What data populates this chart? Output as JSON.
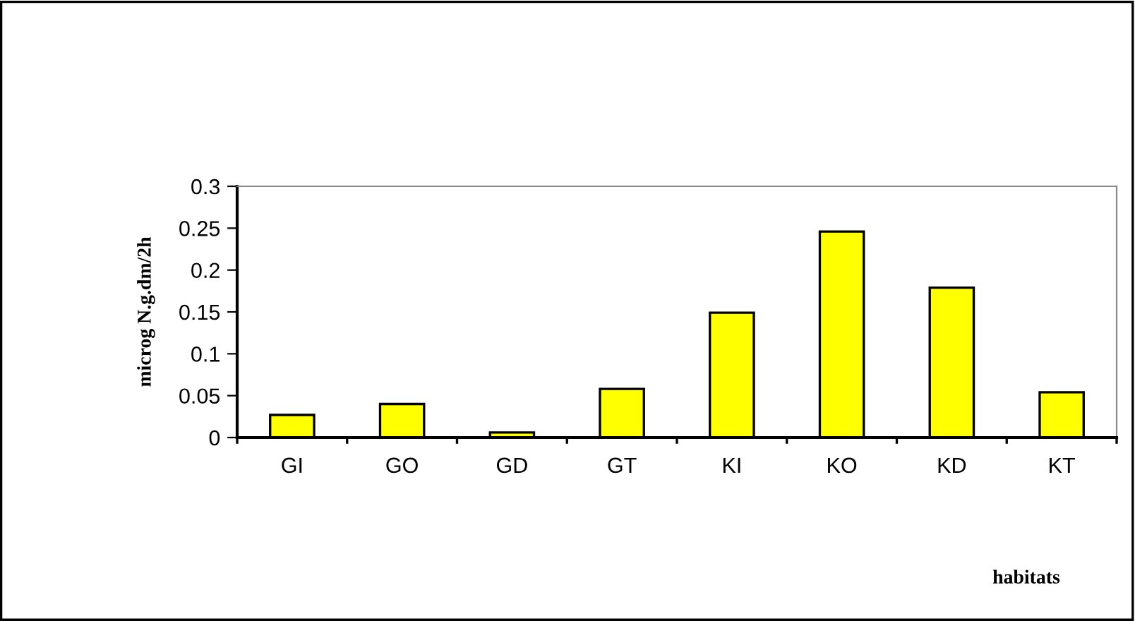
{
  "chart_data": {
    "type": "bar",
    "xlabel": "habitats",
    "ylabel": "microg N.g.dm/2h",
    "categories": [
      "GI",
      "GO",
      "GD",
      "GT",
      "KI",
      "KO",
      "KD",
      "KT"
    ],
    "values": [
      0.027,
      0.04,
      0.006,
      0.058,
      0.149,
      0.246,
      0.179,
      0.054
    ],
    "color": "#ffff00",
    "ylim": [
      0,
      0.3
    ],
    "yticks": [
      0,
      0.05,
      0.1,
      0.15,
      0.2,
      0.25,
      0.3
    ],
    "grid": false
  }
}
